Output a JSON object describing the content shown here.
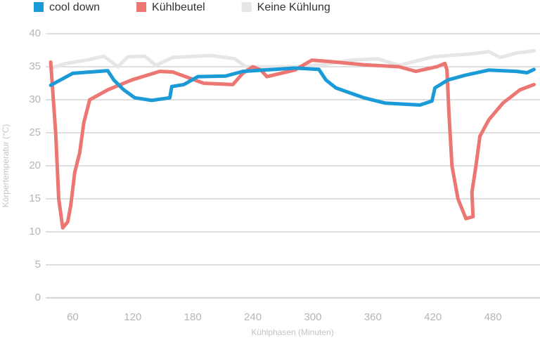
{
  "chart_data": {
    "type": "line",
    "x_label": "Kühlphasen (Minuten)",
    "y_label": "Körpertemperatur (°C)",
    "xlim": [
      33,
      527
    ],
    "ylim": [
      0,
      40
    ],
    "xticks": [
      60,
      120,
      180,
      240,
      300,
      360,
      420,
      480
    ],
    "yticks": [
      0,
      5,
      10,
      15,
      20,
      25,
      30,
      35,
      40
    ],
    "grid": true,
    "legend": "top",
    "series": [
      {
        "name": "cool down",
        "color": "#1a9ad6",
        "x": [
          38,
          60,
          95,
          101,
          111,
          122,
          139,
          157,
          159,
          171,
          185,
          213,
          230,
          282,
          306,
          313,
          323,
          351,
          372,
          407,
          419,
          422,
          435,
          452,
          476,
          504,
          514,
          521
        ],
        "values": [
          32.2,
          34,
          34.4,
          33,
          31.5,
          30.3,
          29.9,
          30.3,
          32,
          32.3,
          33.5,
          33.6,
          34.3,
          34.8,
          34.6,
          33,
          31.8,
          30.3,
          29.5,
          29.2,
          29.8,
          31.8,
          33,
          33.7,
          34.5,
          34.3,
          34.1,
          34.6
        ]
      },
      {
        "name": "Kühlbeutel",
        "color": "#ec7671",
        "x": [
          38,
          43,
          46,
          50,
          55,
          58,
          62,
          67,
          71,
          77,
          95,
          119,
          147,
          160,
          191,
          220,
          230,
          240,
          248,
          254,
          282,
          299,
          316,
          351,
          386,
          403,
          424,
          432,
          434,
          436,
          439,
          445,
          453,
          460,
          459,
          463,
          467,
          476,
          490,
          507,
          521
        ],
        "values": [
          35.7,
          25,
          15,
          10.6,
          11.5,
          14,
          19,
          22,
          26.5,
          30,
          31.5,
          33,
          34.3,
          34.2,
          32.5,
          32.3,
          34,
          35,
          34.5,
          33.5,
          34.5,
          36,
          35.8,
          35.3,
          35,
          34.3,
          35,
          35.5,
          34.5,
          28,
          20,
          15,
          12,
          12.3,
          16,
          20,
          24.5,
          27,
          29.5,
          31.5,
          32.3
        ]
      },
      {
        "name": "Keine Kühlung",
        "color": "#e6e6e6",
        "x": [
          38,
          53,
          74,
          91,
          105,
          115,
          132,
          143,
          160,
          198,
          222,
          233,
          282,
          310,
          338,
          365,
          386,
          420,
          462,
          476,
          487,
          504,
          521
        ],
        "values": [
          34.8,
          35.5,
          36,
          36.6,
          35,
          36.5,
          36.6,
          35.2,
          36.4,
          36.7,
          36.2,
          35,
          35,
          35.3,
          36,
          36.2,
          35.2,
          36.5,
          37,
          37.3,
          36.4,
          37.1,
          37.4
        ]
      }
    ]
  }
}
